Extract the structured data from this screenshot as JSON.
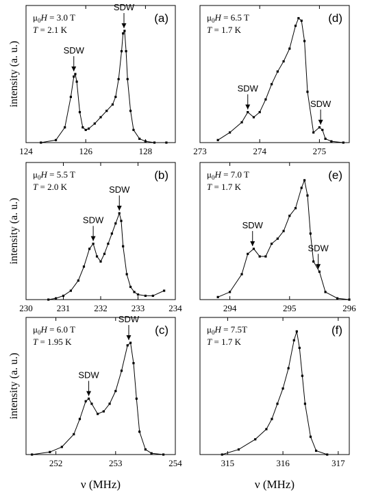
{
  "figure": {
    "ylabel": "intensity (a. u.)",
    "xlabel": "ν (MHz)"
  },
  "chart_data": [
    {
      "id": "a",
      "type": "line",
      "panel_label": "(a)",
      "field_label": "μ0H = 3.0 T",
      "temp_label": "T = 2.1 K",
      "xlim": [
        124,
        129
      ],
      "ylim": [
        0,
        1.08
      ],
      "xticks": [
        124,
        126,
        128
      ],
      "xtick_labels": [
        "124",
        "126",
        "128"
      ],
      "x": [
        124.5,
        125.0,
        125.3,
        125.5,
        125.6,
        125.65,
        125.7,
        125.8,
        125.9,
        126.0,
        126.1,
        126.3,
        126.5,
        126.7,
        126.9,
        127.0,
        127.1,
        127.2,
        127.25,
        127.3,
        127.35,
        127.4,
        127.5,
        127.6,
        127.8,
        128.0,
        128.3,
        128.7
      ],
      "y": [
        0.0,
        0.02,
        0.12,
        0.36,
        0.52,
        0.54,
        0.48,
        0.24,
        0.12,
        0.1,
        0.11,
        0.15,
        0.2,
        0.25,
        0.3,
        0.36,
        0.5,
        0.72,
        0.86,
        0.88,
        0.72,
        0.5,
        0.25,
        0.1,
        0.03,
        0.01,
        0.0,
        0.0
      ],
      "annotations": [
        {
          "text": "SDW",
          "x": 125.6,
          "y": 0.54
        },
        {
          "text": "SDW",
          "x": 127.28,
          "y": 0.88
        }
      ]
    },
    {
      "id": "b",
      "type": "line",
      "panel_label": "(b)",
      "field_label": "μ0H = 5.5 T",
      "temp_label": "T = 2.0 K",
      "xlim": [
        230,
        234
      ],
      "ylim": [
        0,
        1.08
      ],
      "xticks": [
        230,
        231,
        232,
        233,
        234
      ],
      "xtick_labels": [
        "230",
        "231",
        "232",
        "233",
        "234"
      ],
      "x": [
        230.6,
        230.8,
        231.0,
        231.2,
        231.4,
        231.55,
        231.7,
        231.8,
        231.9,
        232.0,
        232.1,
        232.2,
        232.3,
        232.4,
        232.5,
        232.55,
        232.6,
        232.7,
        232.8,
        232.9,
        233.0,
        233.2,
        233.4,
        233.7
      ],
      "y": [
        0.0,
        0.01,
        0.03,
        0.07,
        0.15,
        0.26,
        0.4,
        0.44,
        0.34,
        0.3,
        0.36,
        0.44,
        0.52,
        0.6,
        0.68,
        0.62,
        0.42,
        0.2,
        0.1,
        0.06,
        0.04,
        0.03,
        0.03,
        0.07
      ],
      "annotations": [
        {
          "text": "SDW",
          "x": 231.8,
          "y": 0.44
        },
        {
          "text": "SDW",
          "x": 232.5,
          "y": 0.68
        }
      ]
    },
    {
      "id": "c",
      "type": "line",
      "panel_label": "(c)",
      "field_label": "μ0H = 6.0 T",
      "temp_label": "T = 1.95 K",
      "xlim": [
        251.5,
        254
      ],
      "ylim": [
        0,
        1.08
      ],
      "xticks": [
        252,
        253,
        254
      ],
      "xtick_labels": [
        "252",
        "253",
        "254"
      ],
      "x": [
        251.6,
        251.9,
        252.1,
        252.3,
        252.4,
        252.5,
        252.55,
        252.6,
        252.7,
        252.8,
        252.9,
        253.0,
        253.1,
        253.2,
        253.25,
        253.3,
        253.35,
        253.4,
        253.5,
        253.6,
        253.8
      ],
      "y": [
        0.0,
        0.02,
        0.06,
        0.16,
        0.28,
        0.42,
        0.44,
        0.4,
        0.32,
        0.34,
        0.4,
        0.5,
        0.66,
        0.86,
        0.88,
        0.72,
        0.44,
        0.18,
        0.04,
        0.01,
        0.0
      ],
      "annotations": [
        {
          "text": "SDW",
          "x": 252.55,
          "y": 0.44
        },
        {
          "text": "SDW",
          "x": 253.22,
          "y": 0.88
        }
      ]
    },
    {
      "id": "d",
      "type": "line",
      "panel_label": "(d)",
      "field_label": "μ0H = 6.5 T",
      "temp_label": "T = 1.7 K",
      "xlim": [
        273,
        275.5
      ],
      "ylim": [
        0,
        1.08
      ],
      "xticks": [
        273,
        274,
        275
      ],
      "xtick_labels": [
        "273",
        "274",
        "275"
      ],
      "x": [
        273.3,
        273.5,
        273.7,
        273.8,
        273.9,
        274.0,
        274.1,
        274.2,
        274.3,
        274.4,
        274.5,
        274.6,
        274.65,
        274.7,
        274.75,
        274.8,
        274.9,
        275.0,
        275.05,
        275.1,
        275.2,
        275.4
      ],
      "y": [
        0.02,
        0.08,
        0.16,
        0.24,
        0.2,
        0.24,
        0.34,
        0.46,
        0.56,
        0.64,
        0.74,
        0.92,
        0.98,
        0.96,
        0.8,
        0.4,
        0.08,
        0.12,
        0.1,
        0.03,
        0.01,
        0.0
      ],
      "annotations": [
        {
          "text": "SDW",
          "x": 273.8,
          "y": 0.24
        },
        {
          "text": "SDW",
          "x": 275.02,
          "y": 0.12
        }
      ]
    },
    {
      "id": "e",
      "type": "line",
      "panel_label": "(e)",
      "field_label": "μ0H = 7.0 T",
      "temp_label": "T = 1.7 K",
      "xlim": [
        293.5,
        296
      ],
      "ylim": [
        0,
        1.08
      ],
      "xticks": [
        294,
        295,
        296
      ],
      "xtick_labels": [
        "294",
        "295",
        "296"
      ],
      "x": [
        293.8,
        294.0,
        294.2,
        294.3,
        294.4,
        294.5,
        294.6,
        294.7,
        294.8,
        294.9,
        295.0,
        295.1,
        295.2,
        295.25,
        295.3,
        295.35,
        295.4,
        295.5,
        295.6,
        295.8,
        296.0
      ],
      "y": [
        0.02,
        0.06,
        0.2,
        0.36,
        0.4,
        0.34,
        0.34,
        0.44,
        0.48,
        0.54,
        0.66,
        0.72,
        0.88,
        0.94,
        0.82,
        0.52,
        0.3,
        0.22,
        0.06,
        0.01,
        0.0
      ],
      "annotations": [
        {
          "text": "SDW",
          "x": 294.38,
          "y": 0.4
        },
        {
          "text": "SDW",
          "x": 295.48,
          "y": 0.22
        }
      ]
    },
    {
      "id": "f",
      "type": "line",
      "panel_label": "(f)",
      "field_label": "μ0H = 7.5T",
      "temp_label": "T = 1.7 K",
      "xlim": [
        314.5,
        317.2
      ],
      "ylim": [
        0,
        1.08
      ],
      "xticks": [
        315,
        316,
        317
      ],
      "xtick_labels": [
        "315",
        "316",
        "317"
      ],
      "x": [
        314.9,
        315.2,
        315.5,
        315.7,
        315.8,
        315.9,
        316.0,
        316.1,
        316.2,
        316.25,
        316.3,
        316.35,
        316.4,
        316.5,
        316.6,
        316.8
      ],
      "y": [
        0.0,
        0.04,
        0.12,
        0.2,
        0.28,
        0.4,
        0.52,
        0.68,
        0.9,
        0.97,
        0.84,
        0.62,
        0.4,
        0.14,
        0.03,
        0.0
      ],
      "annotations": []
    }
  ]
}
